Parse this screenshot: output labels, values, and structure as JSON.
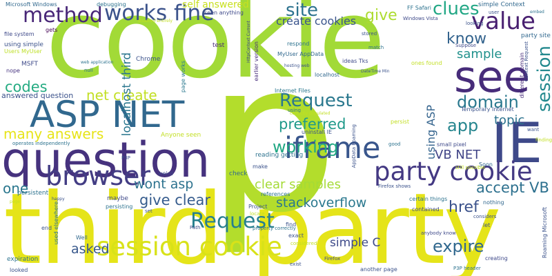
{
  "words": [
    {
      "id": "cookie",
      "text": "cookie",
      "color": "#a2da37"
    },
    {
      "id": "third-party",
      "text": "third party",
      "color": "#e5e419"
    },
    {
      "id": "p",
      "text": "p",
      "color": "#b3dd2c"
    },
    {
      "id": "ie",
      "text": "IE",
      "color": "#3e4989"
    },
    {
      "id": "question",
      "text": "question",
      "color": "#46327e"
    },
    {
      "id": "asp-net",
      "text": "ASP NET",
      "color": "#31688e"
    },
    {
      "id": "see",
      "text": "see",
      "color": "#472c7a"
    },
    {
      "id": "session-cookie",
      "text": "session cookie",
      "color": "#d8e219"
    },
    {
      "id": "party-cookie",
      "text": "party cookie",
      "color": "#443983"
    },
    {
      "id": "browser",
      "text": "browser",
      "color": "#433d84"
    },
    {
      "id": "iframe",
      "text": "iframe",
      "color": "#39568c"
    },
    {
      "id": "method",
      "text": "method",
      "color": "#482677"
    },
    {
      "id": "works-fine",
      "text": "works fine",
      "color": "#3b528b"
    },
    {
      "id": "value",
      "text": "value",
      "color": "#481f70"
    },
    {
      "id": "request-center",
      "text": "Request",
      "color": "#2a788e"
    },
    {
      "id": "request-bottom",
      "text": "Request",
      "color": "#277f8e"
    },
    {
      "id": "session-vert",
      "text": "session",
      "color": "#23898e"
    },
    {
      "id": "site",
      "text": "site",
      "color": "#2c728e"
    },
    {
      "id": "create-cookies",
      "text": "create cookies",
      "color": "#3a548c"
    },
    {
      "id": "clues",
      "text": "clues",
      "color": "#22a785"
    },
    {
      "id": "give-top",
      "text": "give",
      "color": "#addc30"
    },
    {
      "id": "know",
      "text": "know",
      "color": "#33638d"
    },
    {
      "id": "domain",
      "text": "domain",
      "color": "#2a788e"
    },
    {
      "id": "sample",
      "text": "sample",
      "color": "#21918c"
    },
    {
      "id": "codes",
      "text": "codes",
      "color": "#25ab82"
    },
    {
      "id": "net-create",
      "text": "net create",
      "color": "#c2df23"
    },
    {
      "id": "many-answers",
      "text": "many answers",
      "color": "#e7e419"
    },
    {
      "id": "preferred",
      "text": "preferred",
      "color": "#1f998a"
    },
    {
      "id": "app",
      "text": "app",
      "color": "#25858e"
    },
    {
      "id": "topic",
      "text": "topic",
      "color": "#2c728e"
    },
    {
      "id": "working",
      "text": "working",
      "color": "#22a884"
    },
    {
      "id": "vb-net",
      "text": "VB NET",
      "color": "#414487"
    },
    {
      "id": "one",
      "text": "one",
      "color": "#2a778e"
    },
    {
      "id": "give-clear",
      "text": "give clear",
      "color": "#365c8d"
    },
    {
      "id": "wont-asp",
      "text": "wont asp",
      "color": "#2c728e"
    },
    {
      "id": "clear-samples",
      "text": "clear samples",
      "color": "#a5db36"
    },
    {
      "id": "accept-vb",
      "text": "accept VB",
      "color": "#2d708e"
    },
    {
      "id": "stackoverflow",
      "text": "stackoverflow",
      "color": "#2a788e"
    },
    {
      "id": "href",
      "text": "href",
      "color": "#3b528b"
    },
    {
      "id": "expire",
      "text": "expire",
      "color": "#31688e"
    },
    {
      "id": "asked",
      "text": "asked",
      "color": "#38588c"
    },
    {
      "id": "simple-c",
      "text": "simple C",
      "color": "#3e4a89"
    },
    {
      "id": "localhost-third",
      "text": "localhost third",
      "color": "#2a768e"
    },
    {
      "id": "using-asp",
      "text": "using ASP",
      "color": "#33638d"
    },
    {
      "id": "self-answered",
      "text": "self answered",
      "color": "#c8e020"
    },
    {
      "id": "answered-question",
      "text": "answered question",
      "color": "#3b528b"
    },
    {
      "id": "microsoft-windows",
      "text": "Microsoft Windows",
      "color": "#31688e"
    },
    {
      "id": "debugging",
      "text": "debugging",
      "color": "#2c728e"
    },
    {
      "id": "file-system",
      "text": "file system",
      "color": "#3e4989"
    },
    {
      "id": "gets",
      "text": "gets",
      "color": "#440154"
    },
    {
      "id": "using-simple",
      "text": "using simple",
      "color": "#3b528b"
    },
    {
      "id": "users-myuser",
      "text": "Users MyUser",
      "color": "#bddf26"
    },
    {
      "id": "msft",
      "text": "MSFT",
      "color": "#3e4a89"
    },
    {
      "id": "nope",
      "text": "nope",
      "color": "#46337f"
    },
    {
      "id": "seen-anything",
      "text": "seen anything",
      "color": "#3e4989"
    },
    {
      "id": "disabled-entirely",
      "text": "disabled entirely",
      "color": "#c2df23"
    },
    {
      "id": "test",
      "text": "test",
      "color": "#482878"
    },
    {
      "id": "chrome",
      "text": "Chrome",
      "color": "#3b528b"
    },
    {
      "id": "web-application",
      "text": "web application",
      "color": "#2c728e"
    },
    {
      "id": "null",
      "text": "null",
      "color": "#2c728e"
    },
    {
      "id": "page-works",
      "text": "page works",
      "color": "#2a788e"
    },
    {
      "id": "httpcontext-current",
      "text": "HttpContext Current",
      "color": "#3e4989"
    },
    {
      "id": "earlier-version",
      "text": "earlier version",
      "color": "#472d7b"
    },
    {
      "id": "respond",
      "text": "respond",
      "color": "#2c728e"
    },
    {
      "id": "myuser-appdata",
      "text": "MyUser AppData",
      "color": "#31688e"
    },
    {
      "id": "hosting-web",
      "text": "hosting web",
      "color": "#3b528b"
    },
    {
      "id": "localhost",
      "text": "localhost",
      "color": "#31688e"
    },
    {
      "id": "stored",
      "text": "stored",
      "color": "#3b528b"
    },
    {
      "id": "match",
      "text": "match",
      "color": "#2c728e"
    },
    {
      "id": "ideas-tks",
      "text": "ideas Tks",
      "color": "#3e4989"
    },
    {
      "id": "datetime-min",
      "text": "DateTime Min",
      "color": "#3b528b"
    },
    {
      "id": "ff-safari",
      "text": "FF Safari",
      "color": "#2c728e"
    },
    {
      "id": "windows-vista",
      "text": "Windows Vista",
      "color": "#3e4989"
    },
    {
      "id": "looking",
      "text": "looking",
      "color": "#3b528b"
    },
    {
      "id": "simple-context",
      "text": "simple Context",
      "color": "#31688e"
    },
    {
      "id": "user",
      "text": "user",
      "color": "#3b528b"
    },
    {
      "id": "embed",
      "text": "embed",
      "color": "#2c728e"
    },
    {
      "id": "party-site",
      "text": "party site",
      "color": "#31688e"
    },
    {
      "id": "suppose",
      "text": "Suppose",
      "color": "#3e4989"
    },
    {
      "id": "ones-found",
      "text": "ones found",
      "color": "#c2df23"
    },
    {
      "id": "context-request",
      "text": "Context Request",
      "color": "#3b528b"
    },
    {
      "id": "different-domain",
      "text": "different domain",
      "color": "#472d7b"
    },
    {
      "id": "internet-files",
      "text": "Internet Files",
      "color": "#2a788e"
    },
    {
      "id": "temporary-internet",
      "text": "Temporary Internet",
      "color": "#3b528b"
    },
    {
      "id": "using",
      "text": "using",
      "color": "#2c728e"
    },
    {
      "id": "correctly-populated",
      "text": "correctly populated",
      "color": "#c2df23"
    },
    {
      "id": "uninstall-ie",
      "text": "uninstall IE",
      "color": "#3b528b"
    },
    {
      "id": "persist",
      "text": "persist",
      "color": "#c2df23"
    },
    {
      "id": "small-pixel",
      "text": "small pixel",
      "color": "#3e4989"
    },
    {
      "id": "good",
      "text": "good",
      "color": "#2c728e"
    },
    {
      "id": "reading-getting",
      "text": "reading getting",
      "color": "#2c728e"
    },
    {
      "id": "appdata-roaming",
      "text": "AppData Roaming",
      "color": "#3b528b"
    },
    {
      "id": "finding",
      "text": "finding",
      "color": "#c2df23"
    },
    {
      "id": "still-possible",
      "text": "still possible",
      "color": "#c2df23"
    },
    {
      "id": "soon",
      "text": "Soon",
      "color": "#31688e"
    },
    {
      "id": "want",
      "text": "want",
      "color": "#3b528b"
    },
    {
      "id": "anyone-seen",
      "text": "Anyone seen",
      "color": "#c2df23"
    },
    {
      "id": "p3p",
      "text": "P3P",
      "color": "#3b528b"
    },
    {
      "id": "operates-independently",
      "text": "operates independently",
      "color": "#2c728e"
    },
    {
      "id": "weird",
      "text": "weird",
      "color": "#3e4989"
    },
    {
      "id": "check",
      "text": "check",
      "color": "#31688e"
    },
    {
      "id": "make",
      "text": "make",
      "color": "#3b528b"
    },
    {
      "id": "persistent",
      "text": "persistent",
      "color": "#2c728e"
    },
    {
      "id": "maybe",
      "text": "maybe",
      "color": "#3e4989"
    },
    {
      "id": "happy",
      "text": "happy",
      "color": "#3b528b"
    },
    {
      "id": "page",
      "text": "page",
      "color": "#c2df23"
    },
    {
      "id": "persisting",
      "text": "persisting",
      "color": "#2c728e"
    },
    {
      "id": "project",
      "text": "Project",
      "color": "#3b528b"
    },
    {
      "id": "references",
      "text": "references",
      "color": "#2c728e"
    },
    {
      "id": "firefox-shows",
      "text": "Firefox shows",
      "color": "#3b528b"
    },
    {
      "id": "certain-things",
      "text": "certain things",
      "color": "#2c728e"
    },
    {
      "id": "contained",
      "text": "contained",
      "color": "#3e4989"
    },
    {
      "id": "nothing",
      "text": "nothing",
      "color": "#31688e"
    },
    {
      "id": "set",
      "text": "set",
      "color": "#3b528b"
    },
    {
      "id": "locate",
      "text": "locate",
      "color": "#c2df23"
    },
    {
      "id": "used-elsewhere",
      "text": "used elsewhere",
      "color": "#2c728e"
    },
    {
      "id": "end",
      "text": "end",
      "color": "#3b528b"
    },
    {
      "id": "well",
      "text": "Well",
      "color": "#31688e"
    },
    {
      "id": "path",
      "text": "Path",
      "color": "#3e4989"
    },
    {
      "id": "property-correctly",
      "text": "property correctly",
      "color": "#2c728e"
    },
    {
      "id": "find",
      "text": "find",
      "color": "#3b528b"
    },
    {
      "id": "exact",
      "text": "exact",
      "color": "#3b528b"
    },
    {
      "id": "considered",
      "text": "considered",
      "color": "#c2df23"
    },
    {
      "id": "considers",
      "text": "considers",
      "color": "#3b528b"
    },
    {
      "id": "anybody-know",
      "text": "anybody know",
      "color": "#3e4989"
    },
    {
      "id": "let",
      "text": "let",
      "color": "#3b528b"
    },
    {
      "id": "expiration",
      "text": "expiration",
      "color": "#2c728e"
    },
    {
      "id": "exist",
      "text": "exist",
      "color": "#3b528b"
    },
    {
      "id": "firefox",
      "text": "Firefox",
      "color": "#3e4989"
    },
    {
      "id": "another-page",
      "text": "another page",
      "color": "#3b528b"
    },
    {
      "id": "p3p-header",
      "text": "P3P header",
      "color": "#2c728e"
    },
    {
      "id": "creating",
      "text": "creating",
      "color": "#3e4989"
    },
    {
      "id": "roaming-microsoft",
      "text": "Roaming Microsoft",
      "color": "#3b528b"
    },
    {
      "id": "looked",
      "text": "looked",
      "color": "#3b528b"
    }
  ]
}
